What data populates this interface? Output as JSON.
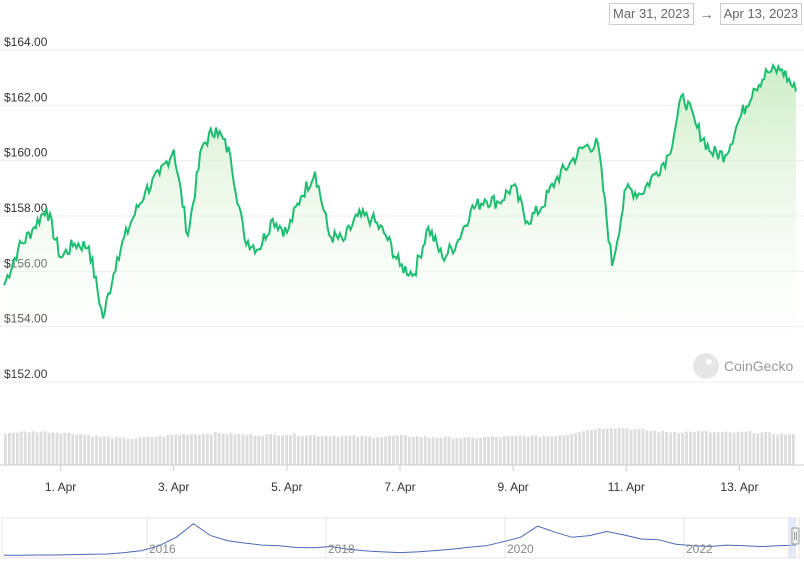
{
  "range_selector": {
    "from": "Mar 31, 2023",
    "arrow": "→",
    "to": "Apr 13, 2023"
  },
  "watermark": "CoinGecko",
  "colors": {
    "line": "#1fbd72",
    "area_top": "#c8ecc0",
    "volume": "#dddddd",
    "navigator_line": "#4a68b5",
    "grid": "#eeeeee"
  },
  "chart_data": {
    "type": "line",
    "y_ticks": [
      "$164.00",
      "$162.00",
      "$160.00",
      "$158.00",
      "$156.00",
      "$154.00",
      "$152.00"
    ],
    "y_tick_values": [
      164,
      162,
      160,
      158,
      156,
      154,
      152
    ],
    "ylim": [
      152,
      164
    ],
    "x_ticks": [
      "1. Apr",
      "3. Apr",
      "5. Apr",
      "7. Apr",
      "9. Apr",
      "11. Apr",
      "13. Apr"
    ],
    "xlim": [
      "2023-03-31",
      "2023-04-14"
    ],
    "series": [
      {
        "x": [
          "2023-03-31 00:00",
          "2023-03-31 06:00",
          "2023-03-31 12:00",
          "2023-03-31 18:00",
          "2023-04-01 00:00",
          "2023-04-01 06:00",
          "2023-04-01 12:00",
          "2023-04-01 18:00",
          "2023-04-02 00:00",
          "2023-04-02 06:00",
          "2023-04-02 12:00",
          "2023-04-02 18:00",
          "2023-04-03 00:00",
          "2023-04-03 06:00",
          "2023-04-03 12:00",
          "2023-04-03 18:00",
          "2023-04-04 00:00",
          "2023-04-04 06:00",
          "2023-04-04 12:00",
          "2023-04-04 18:00",
          "2023-04-05 00:00",
          "2023-04-05 06:00",
          "2023-04-05 12:00",
          "2023-04-05 18:00",
          "2023-04-06 00:00",
          "2023-04-06 06:00",
          "2023-04-06 12:00",
          "2023-04-06 18:00",
          "2023-04-07 00:00",
          "2023-04-07 06:00",
          "2023-04-07 12:00",
          "2023-04-07 18:00",
          "2023-04-08 00:00",
          "2023-04-08 06:00",
          "2023-04-08 12:00",
          "2023-04-08 18:00",
          "2023-04-09 00:00",
          "2023-04-09 06:00",
          "2023-04-09 12:00",
          "2023-04-09 18:00",
          "2023-04-10 00:00",
          "2023-04-10 06:00",
          "2023-04-10 12:00",
          "2023-04-10 18:00",
          "2023-04-11 00:00",
          "2023-04-11 06:00",
          "2023-04-11 12:00",
          "2023-04-11 18:00",
          "2023-04-12 00:00",
          "2023-04-12 06:00",
          "2023-04-12 12:00",
          "2023-04-12 18:00",
          "2023-04-13 00:00",
          "2023-04-13 06:00",
          "2023-04-13 12:00",
          "2023-04-13 18:00",
          "2023-04-14 00:00"
        ],
        "y": [
          155.5,
          156.8,
          157.5,
          158.3,
          156.5,
          157.0,
          156.9,
          154.3,
          156.5,
          157.8,
          158.9,
          159.5,
          160.4,
          157.3,
          160.5,
          161.2,
          160.2,
          157.2,
          156.8,
          157.9,
          157.4,
          158.7,
          159.6,
          157.3,
          157.1,
          158.0,
          157.9,
          157.3,
          156.2,
          155.9,
          157.6,
          156.5,
          157.0,
          158.2,
          158.6,
          158.5,
          159.1,
          157.8,
          158.3,
          159.3,
          159.9,
          160.5,
          160.6,
          156.2,
          159.0,
          158.8,
          159.5,
          160.2,
          162.4,
          161.2,
          160.3,
          160.2,
          161.5,
          162.6,
          163.2,
          163.3,
          162.5
        ]
      }
    ],
    "volume": [
      0.58,
      0.6,
      0.61,
      0.6,
      0.59,
      0.57,
      0.54,
      0.51,
      0.49,
      0.48,
      0.5,
      0.52,
      0.55,
      0.56,
      0.57,
      0.58,
      0.57,
      0.55,
      0.54,
      0.55,
      0.56,
      0.55,
      0.54,
      0.53,
      0.53,
      0.52,
      0.51,
      0.52,
      0.53,
      0.52,
      0.51,
      0.5,
      0.5,
      0.49,
      0.5,
      0.51,
      0.52,
      0.53,
      0.52,
      0.53,
      0.56,
      0.62,
      0.66,
      0.68,
      0.67,
      0.64,
      0.62,
      0.6,
      0.6,
      0.61,
      0.6,
      0.59,
      0.59,
      0.6,
      0.58,
      0.57,
      0.55
    ],
    "navigator": {
      "x_labels": [
        "2016",
        "2018",
        "2020",
        "2022"
      ],
      "values": [
        0.02,
        0.02,
        0.03,
        0.03,
        0.04,
        0.05,
        0.06,
        0.1,
        0.16,
        0.3,
        0.55,
        0.95,
        0.6,
        0.45,
        0.38,
        0.32,
        0.3,
        0.25,
        0.24,
        0.28,
        0.2,
        0.15,
        0.12,
        0.1,
        0.12,
        0.16,
        0.2,
        0.26,
        0.3,
        0.42,
        0.55,
        0.88,
        0.7,
        0.55,
        0.6,
        0.72,
        0.62,
        0.5,
        0.48,
        0.35,
        0.3,
        0.28,
        0.32,
        0.3,
        0.28,
        0.3,
        0.32
      ]
    }
  }
}
